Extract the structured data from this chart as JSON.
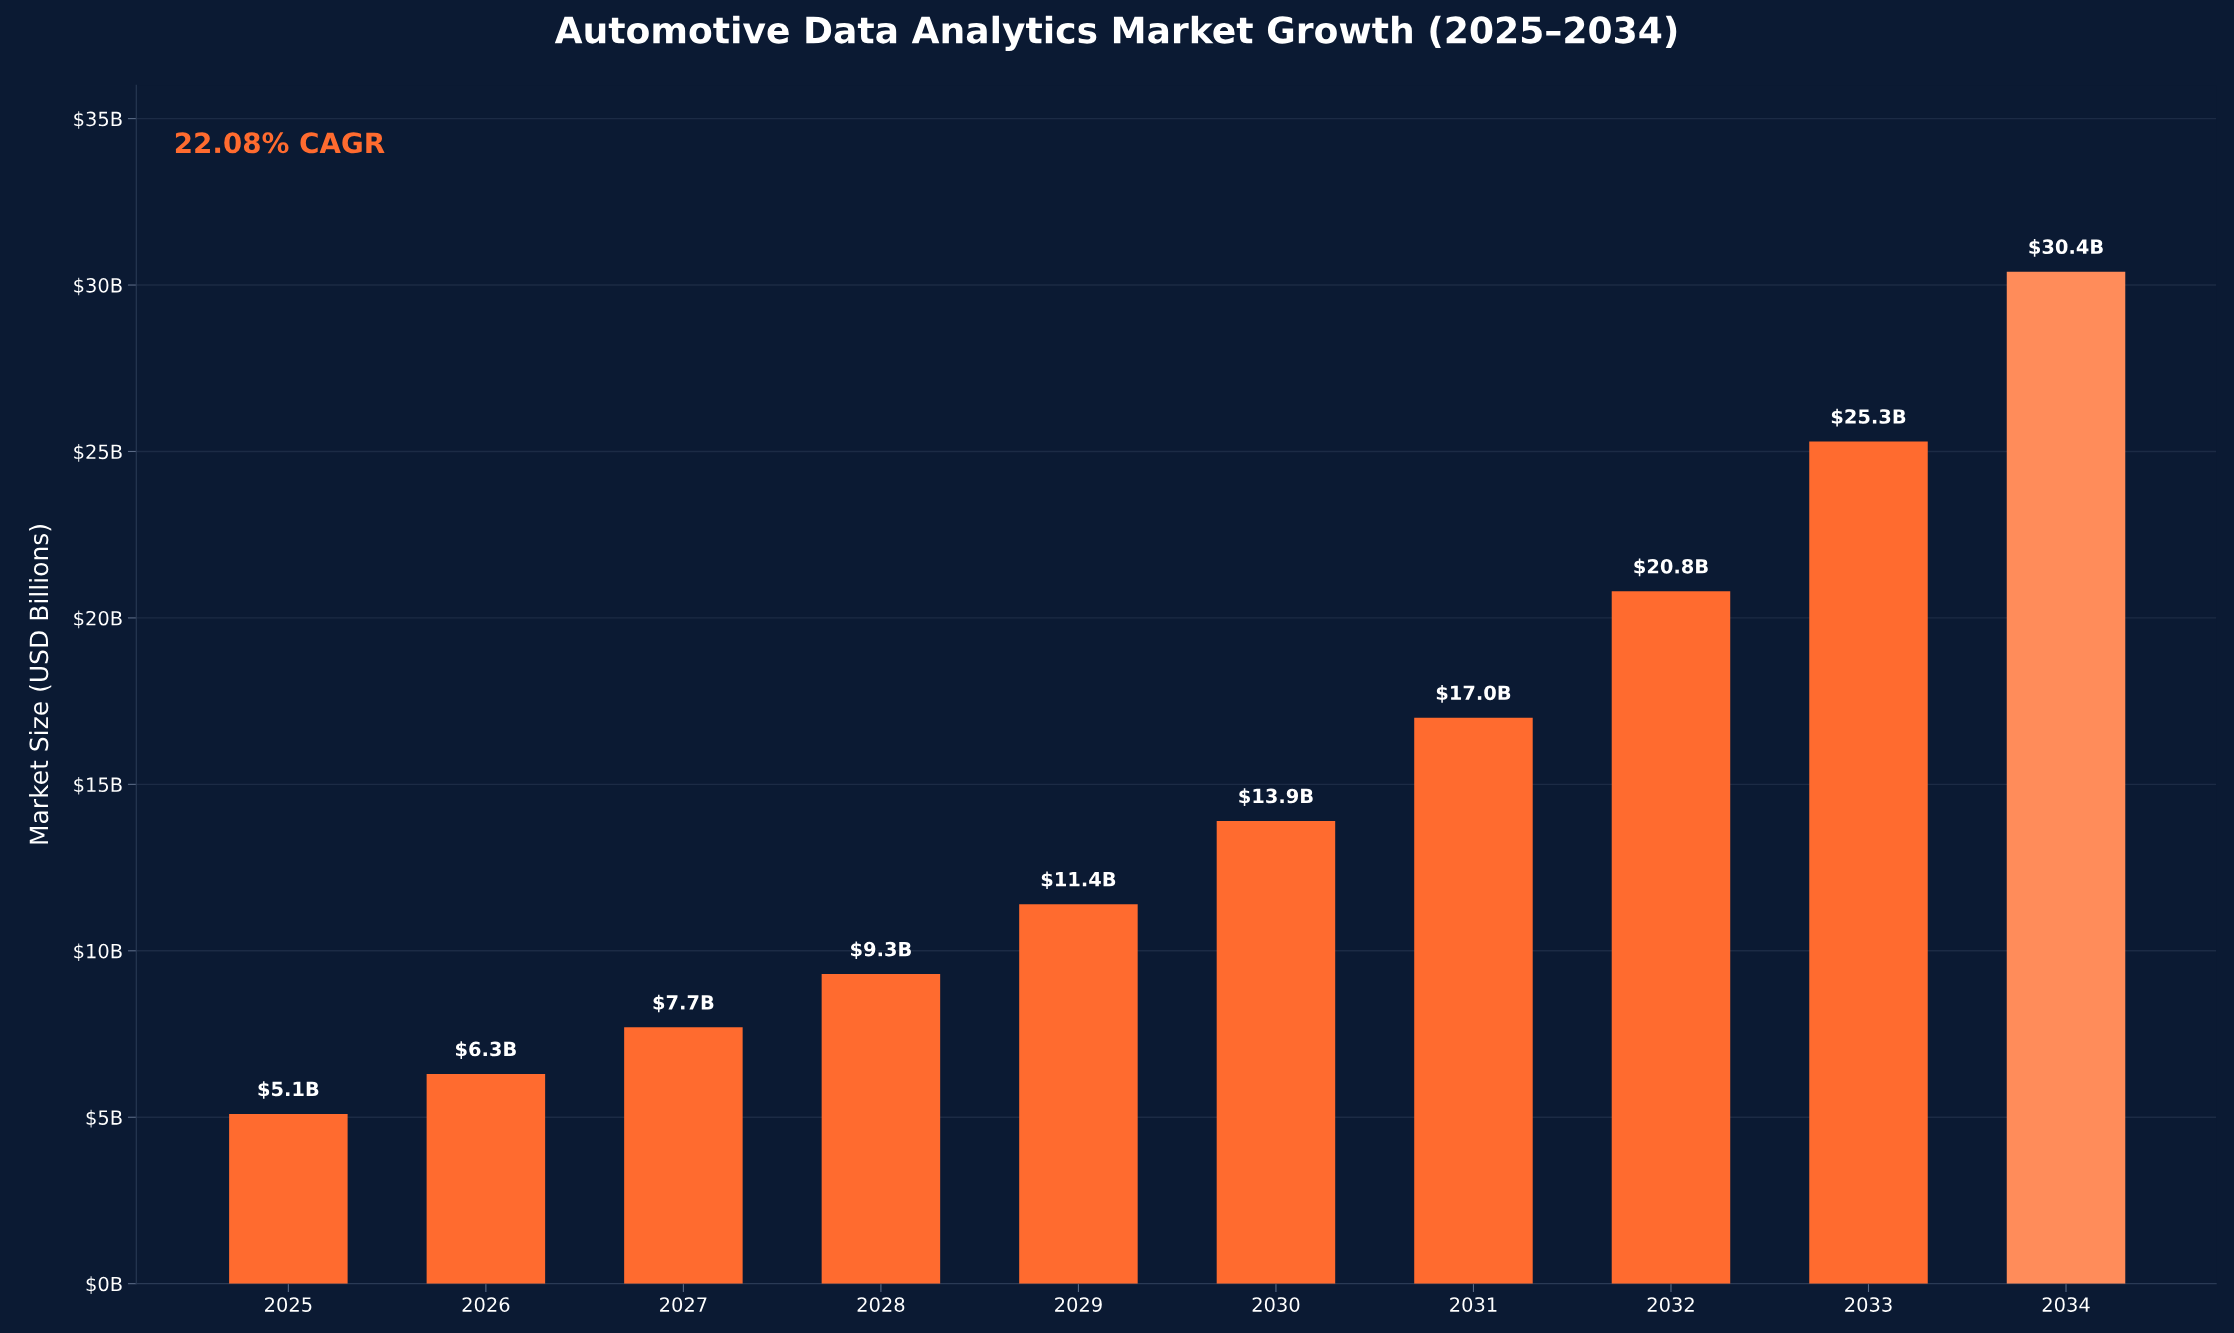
{
  "chart_data": {
    "type": "bar",
    "title": "Automotive Data Analytics Market Growth (2025–2034)",
    "ylabel": "Market Size (USD Billions)",
    "categories": [
      "2025",
      "2026",
      "2027",
      "2028",
      "2029",
      "2030",
      "2031",
      "2032",
      "2033",
      "2034"
    ],
    "values": [
      5.1,
      6.3,
      7.7,
      9.3,
      11.4,
      13.9,
      17.0,
      20.8,
      25.3,
      30.4
    ],
    "colors": [
      "#ff6b2f",
      "#ff6b2f",
      "#ff6b2f",
      "#ff6b2f",
      "#ff6b2f",
      "#ff6b2f",
      "#ff6b2f",
      "#ff6b2f",
      "#ff6b2f",
      "#ff8c5a"
    ],
    "value_labels": [
      "$5.1B",
      "$6.3B",
      "$7.7B",
      "$9.3B",
      "$11.4B",
      "$13.9B",
      "$17.0B",
      "$20.8B",
      "$25.3B",
      "$30.4B"
    ],
    "ylim": [
      0,
      36
    ],
    "yticks": [
      {
        "value": 0,
        "label": "$0B"
      },
      {
        "value": 5,
        "label": "$5B"
      },
      {
        "value": 10,
        "label": "$10B"
      },
      {
        "value": 15,
        "label": "$15B"
      },
      {
        "value": 20,
        "label": "$20B"
      },
      {
        "value": 25,
        "label": "$25B"
      },
      {
        "value": 30,
        "label": "$30B"
      },
      {
        "value": 35,
        "label": "$35B"
      }
    ],
    "annotations": [
      "22.08% CAGR"
    ],
    "grid": "y",
    "legend": false
  }
}
